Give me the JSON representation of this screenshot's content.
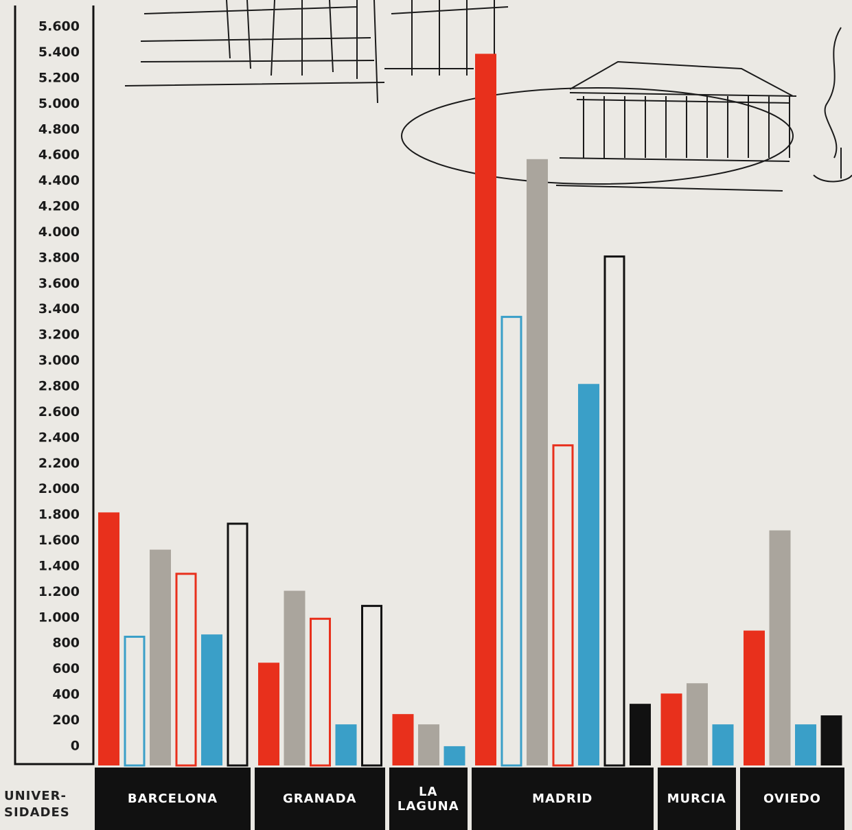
{
  "chart_data": {
    "type": "bar",
    "x_label": "UNIVER- SIDADES",
    "categories": [
      "BARCELONA",
      "GRANADA",
      "LA LAGUNA",
      "MADRID",
      "MURCIA",
      "OVIEDO"
    ],
    "series": [
      {
        "color": "#e8301c",
        "filled": true,
        "values": [
          1820,
          650,
          250,
          5390,
          410,
          900
        ]
      },
      {
        "color": "#3a9fc8",
        "filled": false,
        "values": [
          860,
          null,
          null,
          3350,
          null,
          null
        ]
      },
      {
        "color": "#aaa59d",
        "filled": true,
        "values": [
          1530,
          1210,
          170,
          4570,
          490,
          1680
        ]
      },
      {
        "color": "#e8301c",
        "filled": false,
        "values": [
          1350,
          1000,
          null,
          2350,
          null,
          null
        ]
      },
      {
        "color": "#3a9fc8",
        "filled": true,
        "values": [
          870,
          170,
          0,
          2820,
          170,
          170
        ]
      },
      {
        "color": "#111111",
        "filled": false,
        "values": [
          1740,
          1100,
          null,
          3820,
          null,
          null
        ]
      },
      {
        "color": "#111111",
        "filled": true,
        "values": [
          null,
          null,
          null,
          330,
          null,
          240
        ]
      }
    ],
    "ylim": [
      -150,
      5750
    ],
    "yticks": [
      0,
      200,
      400,
      600,
      800,
      {
        "value": 1000,
        "label": "1.000"
      },
      {
        "value": 1200,
        "label": "1.200"
      },
      {
        "value": 1400,
        "label": "1.400"
      },
      {
        "value": 1600,
        "label": "1.600"
      },
      {
        "value": 1800,
        "label": "1.800"
      },
      {
        "value": 2000,
        "label": "2.000"
      },
      {
        "value": 2200,
        "label": "2.200"
      },
      {
        "value": 2400,
        "label": "2.400"
      },
      {
        "value": 2600,
        "label": "2.600"
      },
      {
        "value": 2800,
        "label": "2.800"
      },
      {
        "value": 3000,
        "label": "3.000"
      },
      {
        "value": 3200,
        "label": "3.200"
      },
      {
        "value": 3400,
        "label": "3.400"
      },
      {
        "value": 3600,
        "label": "3.600"
      },
      {
        "value": 3800,
        "label": "3.800"
      },
      {
        "value": 4000,
        "label": "4.000"
      },
      {
        "value": 4200,
        "label": "4.200"
      },
      {
        "value": 4400,
        "label": "4.400"
      },
      {
        "value": 4600,
        "label": "4.600"
      },
      {
        "value": 4800,
        "label": "4.800"
      },
      {
        "value": 5000,
        "label": "5.000"
      },
      {
        "value": 5200,
        "label": "5.200"
      },
      {
        "value": 5400,
        "label": "5.400"
      },
      {
        "value": 5600,
        "label": "5.600"
      }
    ]
  }
}
